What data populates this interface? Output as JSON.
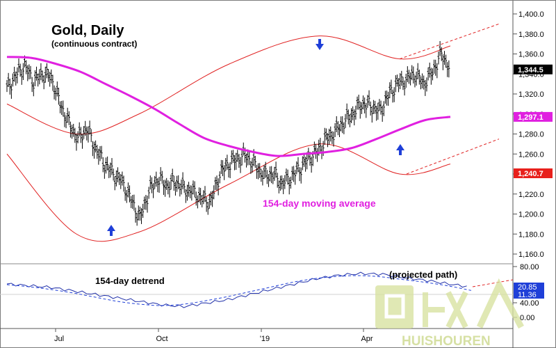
{
  "chart_data": [
    {
      "type": "line",
      "title": "Gold, Daily",
      "subtitle": "(continuous contract)",
      "x_tick_labels": [
        "Jul",
        "Oct",
        "'19",
        "Apr"
      ],
      "y_ticks": [
        1160,
        1180,
        1200,
        1220,
        1240,
        1260,
        1280,
        1300,
        1320,
        1340,
        1360,
        1380,
        1400
      ],
      "y_tick_labels": [
        "1,160.0",
        "1,180.0",
        "1,200.0",
        "1,220.0",
        "1,240.0",
        "1,260.0",
        "1,280.0",
        "1,300.0",
        "1,320.0",
        "1,340.0",
        "1,360.0",
        "1,380.0",
        "1,400.0"
      ],
      "ylim": [
        1140,
        1420
      ],
      "grid": false,
      "annotations": {
        "moving_average_label": "154-day moving average"
      },
      "value_badges": [
        {
          "label": "1,344.5",
          "value": 1344.5,
          "bg": "#000000",
          "fg": "#ffffff"
        },
        {
          "label": "1,297.1",
          "value": 1297.1,
          "bg": "#e020e0",
          "fg": "#ffffff"
        },
        {
          "label": "1,240.7",
          "value": 1240.7,
          "bg": "#e8201c",
          "fg": "#ffffff"
        }
      ],
      "colors": {
        "price": "#000000",
        "moving_average": "#e020e0",
        "bands": "#e02020",
        "arrows": "#1f3fd8"
      },
      "series": [
        {
          "type": "ohlc",
          "x": [
            0,
            6,
            12,
            18,
            24,
            30,
            36,
            42,
            48,
            54,
            60,
            66,
            72,
            78,
            84,
            90,
            96,
            102,
            108,
            114,
            120,
            126,
            132,
            138,
            144,
            150,
            156,
            162,
            168,
            174,
            180,
            186,
            192,
            198,
            204,
            210,
            216,
            222,
            228,
            234,
            240,
            246,
            252,
            258,
            264,
            270,
            276,
            282,
            288,
            294,
            300
          ],
          "close": [
            1325,
            1338,
            1348,
            1332,
            1340,
            1336,
            1310,
            1290,
            1275,
            1285,
            1265,
            1250,
            1240,
            1232,
            1214,
            1195,
            1222,
            1235,
            1228,
            1232,
            1225,
            1222,
            1215,
            1212,
            1240,
            1250,
            1255,
            1258,
            1248,
            1238,
            1240,
            1230,
            1236,
            1245,
            1255,
            1262,
            1275,
            1282,
            1292,
            1300,
            1310,
            1308,
            1302,
            1318,
            1330,
            1334,
            1340,
            1330,
            1342,
            1360,
            1344.5
          ]
        },
        {
          "name": "154-day moving average",
          "values": [
            1357,
            1356,
            1350,
            1342,
            1330,
            1318,
            1305,
            1290,
            1276,
            1268,
            1262,
            1258,
            1260,
            1262,
            1266,
            1275,
            1285,
            1294,
            1297.1
          ]
        },
        {
          "type": "envelope_upper",
          "values": [
            1310,
            1280,
            1300,
            1350,
            1378,
            1355,
            1368,
            1390
          ]
        },
        {
          "type": "envelope_lower",
          "values": [
            1260,
            1180,
            1182,
            1230,
            1270,
            1240,
            1250,
            1275
          ]
        }
      ]
    },
    {
      "type": "line",
      "title": "154-day detrend",
      "annotations": {
        "projected_label": "(projected path)"
      },
      "y_tick_labels": [
        "80.00",
        "40.00",
        "0.00"
      ],
      "value_badges": [
        {
          "label": "20.85",
          "bg": "#1f3fd8",
          "fg": "#ffffff"
        },
        {
          "label": "11.36",
          "bg": "#1f3fd8",
          "fg": "#ffffff"
        }
      ],
      "series": [
        {
          "name": "detrend",
          "values": [
            30,
            25,
            20,
            10,
            0,
            -10,
            -20,
            -30,
            -35,
            -25,
            -15,
            0,
            15,
            30,
            45,
            55,
            60,
            58,
            48,
            40,
            30,
            20.85
          ]
        },
        {
          "name": "detrend smoothed",
          "values": [
            28,
            22,
            14,
            4,
            -8,
            -20,
            -28,
            -32,
            -28,
            -18,
            -6,
            8,
            22,
            36,
            46,
            52,
            54,
            50,
            42,
            34,
            24,
            11.36
          ]
        }
      ]
    }
  ],
  "watermark": {
    "text": "HUISHOUREN"
  }
}
